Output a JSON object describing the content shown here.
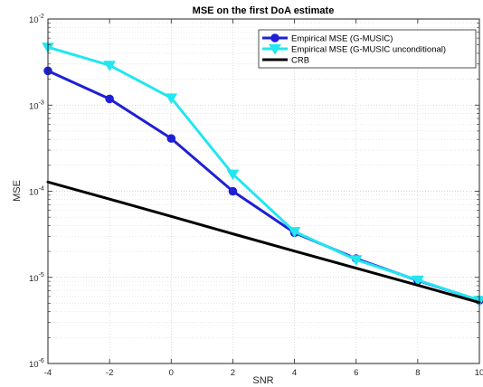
{
  "chart_data": {
    "type": "line",
    "title": "MSE on the first DoA estimate",
    "xlabel": "SNR",
    "ylabel": "MSE",
    "xlim": [
      -4,
      10
    ],
    "ylim": [
      1e-06,
      0.01
    ],
    "yscale": "log",
    "grid": true,
    "minor_grid": true,
    "legend_position": "top-right",
    "x_ticks": [
      "-4",
      "-2",
      "0",
      "2",
      "4",
      "6",
      "8",
      "10"
    ],
    "y_ticks": [
      {
        "base": "10",
        "exp": "-6",
        "value": 1e-06
      },
      {
        "base": "10",
        "exp": "-5",
        "value": 1e-05
      },
      {
        "base": "10",
        "exp": "-4",
        "value": 0.0001
      },
      {
        "base": "10",
        "exp": "-3",
        "value": 0.001
      },
      {
        "base": "10",
        "exp": "-2",
        "value": 0.01
      }
    ],
    "x": [
      -4,
      -2,
      0,
      2,
      4,
      6,
      8,
      10
    ],
    "series": [
      {
        "name": "Empirical MSE (G-MUSIC)",
        "color": "#1f1fd6",
        "marker": "circle",
        "values": [
          0.0025,
          0.00118,
          0.00041,
          0.0001,
          3.3e-05,
          1.65e-05,
          9.2e-06,
          5.4e-06
        ]
      },
      {
        "name": "Empirical MSE (G-MUSIC unconditional)",
        "color": "#22e6f0",
        "marker": "triangle-down",
        "values": [
          0.0047,
          0.0029,
          0.00121,
          0.000158,
          3.4e-05,
          1.6e-05,
          9.3e-06,
          5.4e-06
        ]
      },
      {
        "name": "CRB",
        "color": "#000000",
        "marker": "none",
        "values": [
          0.000128,
          8.1e-05,
          5.1e-05,
          3.2e-05,
          2.02e-05,
          1.28e-05,
          8.1e-06,
          5.1e-06
        ]
      }
    ]
  }
}
